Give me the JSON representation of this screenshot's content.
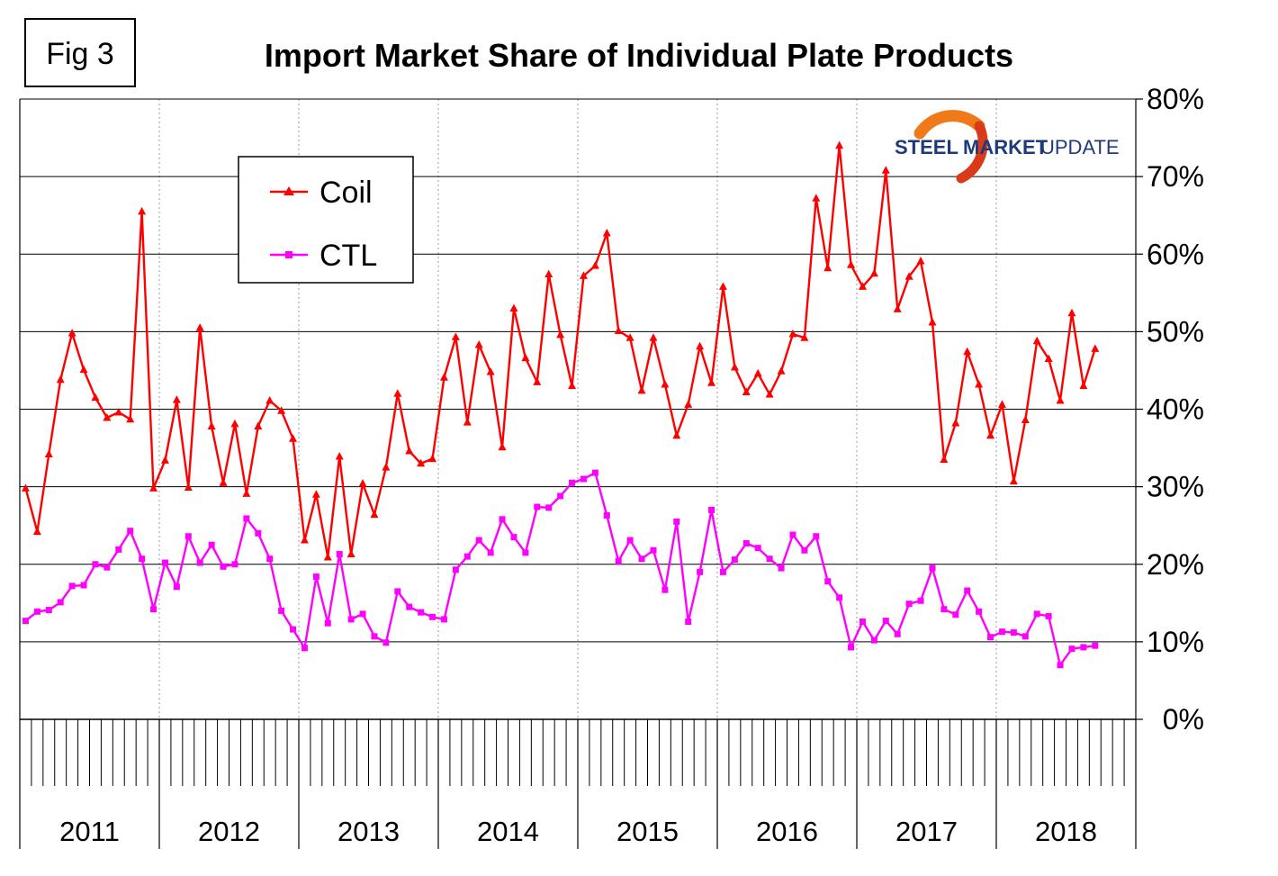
{
  "figure_label": "Fig 3",
  "logo": {
    "word1": "STEEL",
    "word2": "MARKET",
    "word3": "UPDATE",
    "colors": {
      "dark": "#1f3a7a",
      "orange": "#f07a1a",
      "red": "#d83a1a"
    }
  },
  "colors": {
    "coil": "#ff0000",
    "ctl": "#ff00ff",
    "grid": "#000000",
    "minor_grid": "#9a9a9a"
  },
  "chart_data": {
    "type": "line",
    "title": "Import Market Share of Individual Plate Products",
    "xlabel": "",
    "ylabel": "",
    "ylim": [
      0,
      0.8
    ],
    "yticks": [
      {
        "value": 0.0,
        "label": "0%"
      },
      {
        "value": 0.1,
        "label": "10%"
      },
      {
        "value": 0.2,
        "label": "20%"
      },
      {
        "value": 0.3,
        "label": "30%"
      },
      {
        "value": 0.4,
        "label": "40%"
      },
      {
        "value": 0.5,
        "label": "50%"
      },
      {
        "value": 0.6,
        "label": "60%"
      },
      {
        "value": 0.7,
        "label": "70%"
      },
      {
        "value": 0.8,
        "label": "80%"
      }
    ],
    "years": [
      "2011",
      "2012",
      "2013",
      "2014",
      "2015",
      "2016",
      "2017",
      "2018"
    ],
    "months_per_year": 12,
    "legend": [
      "Coil",
      "CTL"
    ],
    "series": [
      {
        "name": "Coil",
        "marker": "triangle",
        "values": [
          0.298,
          0.242,
          0.342,
          0.438,
          0.498,
          0.451,
          0.415,
          0.389,
          0.396,
          0.387,
          0.655,
          0.298,
          0.334,
          0.412,
          0.299,
          0.505,
          0.378,
          0.305,
          0.381,
          0.291,
          0.378,
          0.411,
          0.398,
          0.362,
          0.231,
          0.29,
          0.209,
          0.339,
          0.213,
          0.304,
          0.264,
          0.325,
          0.42,
          0.346,
          0.33,
          0.336,
          0.441,
          0.493,
          0.383,
          0.483,
          0.448,
          0.351,
          0.53,
          0.466,
          0.435,
          0.574,
          0.496,
          0.43,
          0.572,
          0.585,
          0.627,
          0.501,
          0.492,
          0.424,
          0.492,
          0.432,
          0.366,
          0.406,
          0.481,
          0.434,
          0.558,
          0.454,
          0.422,
          0.446,
          0.419,
          0.449,
          0.497,
          0.492,
          0.672,
          0.582,
          0.74,
          0.586,
          0.558,
          0.575,
          0.708,
          0.529,
          0.571,
          0.591,
          0.512,
          0.335,
          0.382,
          0.474,
          0.432,
          0.366,
          0.406,
          0.307,
          0.386,
          0.488,
          0.465,
          0.411,
          0.524,
          0.43,
          0.478
        ]
      },
      {
        "name": "CTL",
        "marker": "square",
        "values": [
          0.127,
          0.139,
          0.141,
          0.151,
          0.172,
          0.173,
          0.2,
          0.196,
          0.219,
          0.243,
          0.207,
          0.142,
          0.202,
          0.171,
          0.236,
          0.202,
          0.225,
          0.197,
          0.2,
          0.259,
          0.24,
          0.207,
          0.14,
          0.116,
          0.092,
          0.184,
          0.124,
          0.213,
          0.129,
          0.136,
          0.107,
          0.099,
          0.165,
          0.145,
          0.138,
          0.132,
          0.129,
          0.193,
          0.21,
          0.231,
          0.215,
          0.258,
          0.235,
          0.215,
          0.274,
          0.273,
          0.288,
          0.305,
          0.31,
          0.318,
          0.263,
          0.204,
          0.231,
          0.207,
          0.218,
          0.167,
          0.255,
          0.126,
          0.19,
          0.27,
          0.19,
          0.206,
          0.227,
          0.221,
          0.207,
          0.195,
          0.238,
          0.218,
          0.236,
          0.178,
          0.157,
          0.093,
          0.126,
          0.102,
          0.127,
          0.11,
          0.149,
          0.153,
          0.195,
          0.142,
          0.135,
          0.166,
          0.139,
          0.106,
          0.113,
          0.112,
          0.107,
          0.136,
          0.133,
          0.07,
          0.091,
          0.093,
          0.095
        ]
      }
    ]
  }
}
